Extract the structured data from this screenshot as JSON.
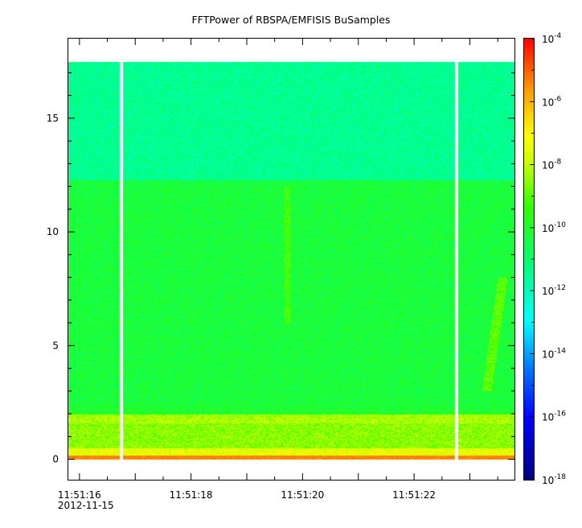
{
  "title": "FFTPower of RBSPA/EMFISIS  BuSamples",
  "chart_data": {
    "type": "heatmap",
    "title": "FFTPower of RBSPA/EMFISIS  BuSamples",
    "xlabel": "",
    "ylabel": "",
    "x_axis": {
      "kind": "time",
      "date_label": "2012-11-15",
      "ticks": [
        "11:51:16",
        "11:51:18",
        "11:51:20",
        "11:51:22"
      ],
      "range": [
        "11:51:15.8",
        "11:51:23.8"
      ]
    },
    "y_axis": {
      "ticks": [
        0,
        5,
        10,
        15
      ],
      "range": [
        -0.9,
        18.5
      ]
    },
    "z_axis": {
      "scale": "log",
      "range": [
        "1e-18",
        "1e-4"
      ],
      "ticks": [
        {
          "base": "10",
          "exp": "-4"
        },
        {
          "base": "10",
          "exp": "-6"
        },
        {
          "base": "10",
          "exp": "-8"
        },
        {
          "base": "10",
          "exp": "-10"
        },
        {
          "base": "10",
          "exp": "-12"
        },
        {
          "base": "10",
          "exp": "-14"
        },
        {
          "base": "10",
          "exp": "-16"
        },
        {
          "base": "10",
          "exp": "-18"
        }
      ]
    },
    "data_extent": {
      "y_max": 17.5,
      "y_min": 0
    },
    "power_bands": [
      {
        "y_from": 12.3,
        "y_to": 17.5,
        "log10_power": -11.5,
        "color": "#00ff80"
      },
      {
        "y_from": 2.0,
        "y_to": 12.3,
        "log10_power": -10.3,
        "color": "#33ff00"
      },
      {
        "y_from": 0.5,
        "y_to": 2.0,
        "log10_power": -8.6,
        "color": "#ffff00"
      },
      {
        "y_from": 0.0,
        "y_to": 0.5,
        "log10_power": -7.5,
        "color": "#ffc000"
      }
    ],
    "data_gaps": [
      "11:51:16.75",
      "11:51:22.75"
    ],
    "grid": false,
    "legend": "colorbar-right"
  }
}
